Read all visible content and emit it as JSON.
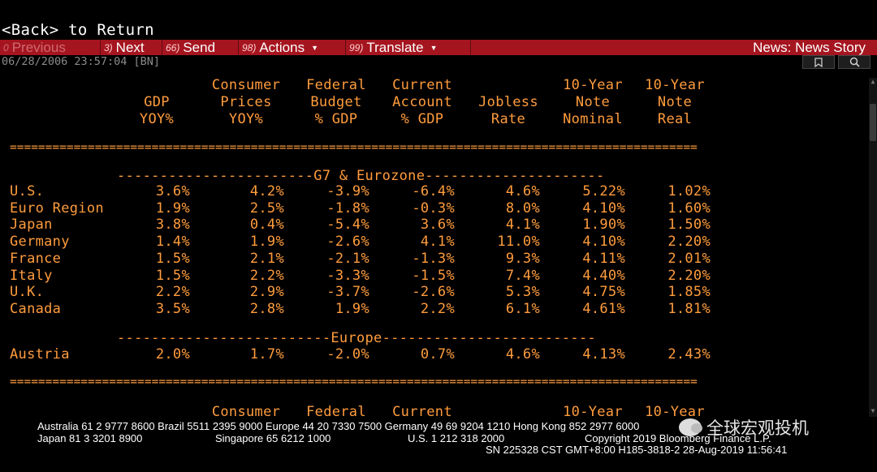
{
  "nav": {
    "back_text": "<Back> to Return"
  },
  "menu": {
    "previous": {
      "num": "0",
      "label": "Previous"
    },
    "next": {
      "num": "3)",
      "label": "Next"
    },
    "send": {
      "num": "66)",
      "label": "Send"
    },
    "actions": {
      "num": "98)",
      "label": "Actions"
    },
    "translate": {
      "num": "99)",
      "label": "Translate"
    },
    "news_story": "News: News Story"
  },
  "story": {
    "timestamp": "06/28/2006 23:57:04 [BN]"
  },
  "table": {
    "header_lines": {
      "gdp": [
        "",
        "GDP",
        "YOY%"
      ],
      "cpi": [
        "Consumer",
        "Prices",
        "YOY%"
      ],
      "budget": [
        "Federal",
        "Budget",
        "% GDP"
      ],
      "current": [
        "Current",
        "Account",
        "% GDP"
      ],
      "jobless": [
        "",
        "Jobless",
        "Rate"
      ],
      "nominal": [
        "10-Year",
        "Note",
        "Nominal"
      ],
      "real": [
        "10-Year",
        "Note",
        "Real"
      ]
    },
    "rule_line": "=================================================================================================",
    "sections": [
      {
        "title_line": "-----------------------G7 & Eurozone---------------------",
        "rows": [
          {
            "country": "U.S.",
            "gdp": "3.6%",
            "cpi": "4.2%",
            "budget": "-3.9%",
            "current": "-6.4%",
            "jobless": "4.6%",
            "nominal": "5.22%",
            "real": "1.02%"
          },
          {
            "country": "Euro Region",
            "gdp": "1.9%",
            "cpi": "2.5%",
            "budget": "-1.8%",
            "current": "-0.3%",
            "jobless": "8.0%",
            "nominal": "4.10%",
            "real": "1.60%"
          },
          {
            "country": "Japan",
            "gdp": "3.8%",
            "cpi": "0.4%",
            "budget": "-5.4%",
            "current": "3.6%",
            "jobless": "4.1%",
            "nominal": "1.90%",
            "real": "1.50%"
          },
          {
            "country": "Germany",
            "gdp": "1.4%",
            "cpi": "1.9%",
            "budget": "-2.6%",
            "current": "4.1%",
            "jobless": "11.0%",
            "nominal": "4.10%",
            "real": "2.20%"
          },
          {
            "country": "France",
            "gdp": "1.5%",
            "cpi": "2.1%",
            "budget": "-2.1%",
            "current": "-1.3%",
            "jobless": "9.3%",
            "nominal": "4.11%",
            "real": "2.01%"
          },
          {
            "country": "Italy",
            "gdp": "1.5%",
            "cpi": "2.2%",
            "budget": "-3.3%",
            "current": "-1.5%",
            "jobless": "7.4%",
            "nominal": "4.40%",
            "real": "2.20%"
          },
          {
            "country": "U.K.",
            "gdp": "2.2%",
            "cpi": "2.9%",
            "budget": "-3.7%",
            "current": "-2.6%",
            "jobless": "5.3%",
            "nominal": "4.75%",
            "real": "1.85%"
          },
          {
            "country": "Canada",
            "gdp": "3.5%",
            "cpi": "2.8%",
            "budget": "1.9%",
            "current": "2.2%",
            "jobless": "6.1%",
            "nominal": "4.61%",
            "real": "1.81%"
          }
        ]
      },
      {
        "title_line": "-------------------------Europe-------------------------",
        "rows": [
          {
            "country": "Austria",
            "gdp": "2.0%",
            "cpi": "1.7%",
            "budget": "-2.0%",
            "current": "0.7%",
            "jobless": "4.6%",
            "nominal": "4.13%",
            "real": "2.43%"
          }
        ]
      }
    ],
    "repeat_header": {
      "cpi": "Consumer",
      "budget": "Federal",
      "current": "Current",
      "nominal": "10-Year",
      "real": "10-Year"
    }
  },
  "footer": {
    "line1": "Australia 61 2 9777 8600 Brazil 5511 2395 9000 Europe 44 20 7330 7500 Germany 49 69 9204 1210 Hong Kong 852 2977 6000",
    "line2_japan": "Japan 81 3 3201 8900",
    "line2_singapore": "Singapore 65 6212 1000",
    "line2_us": "U.S. 1 212 318 2000",
    "line2_copyright": "Copyright 2019 Bloomberg Finance L.P.",
    "line3": "SN 225328 CST  GMT+8:00 H185-3818-2 28-Aug-2019 11:56:41"
  },
  "watermark": "全球宏观投机",
  "colors": {
    "amber": "#ff9c3d",
    "menu_red": "#a5151f",
    "white": "#ffffff"
  }
}
